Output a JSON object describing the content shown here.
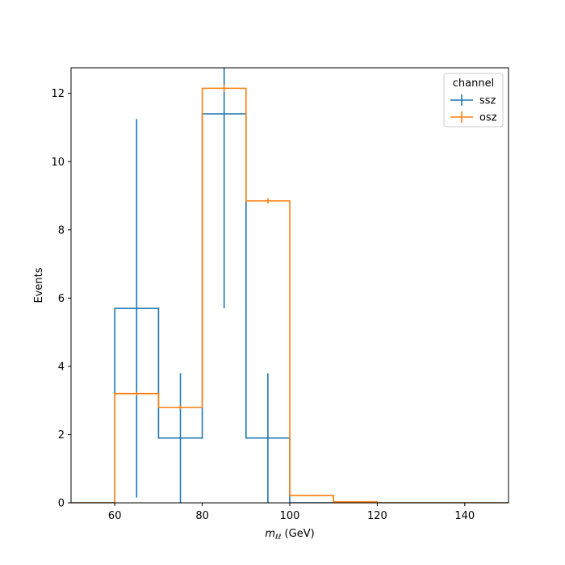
{
  "chart_data": {
    "type": "histogram",
    "title": "",
    "xlabel": "m_{ℓℓ} (GeV)",
    "xlabel_main": "m",
    "xlabel_sub": "ℓℓ",
    "xlabel_unit": " (GeV)",
    "ylabel": "Events",
    "xlim": [
      50,
      150
    ],
    "ylim": [
      0,
      12.75
    ],
    "xticks": [
      60,
      80,
      100,
      120,
      140
    ],
    "yticks": [
      0,
      2,
      4,
      6,
      8,
      10,
      12
    ],
    "grid": false,
    "legend": {
      "title": "channel",
      "placement": "top-right"
    },
    "bin_edges": [
      50,
      60,
      70,
      80,
      90,
      100,
      110,
      120,
      130,
      140,
      150
    ],
    "series": [
      {
        "name": "ssz",
        "color": "#1f77b4",
        "values": [
          0,
          5.7,
          1.9,
          11.4,
          1.9,
          0,
          0,
          0,
          0,
          0
        ],
        "errors": [
          0,
          5.55,
          1.9,
          5.7,
          1.9,
          0,
          0,
          0,
          0,
          0
        ]
      },
      {
        "name": "osz",
        "color": "#ff7f0e",
        "values": [
          0,
          3.2,
          2.8,
          12.15,
          8.85,
          0.22,
          0.03,
          0,
          0,
          0
        ],
        "errors": [
          0,
          0.05,
          0.05,
          0.1,
          0.08,
          0.02,
          0.005,
          0,
          0,
          0
        ]
      }
    ]
  }
}
